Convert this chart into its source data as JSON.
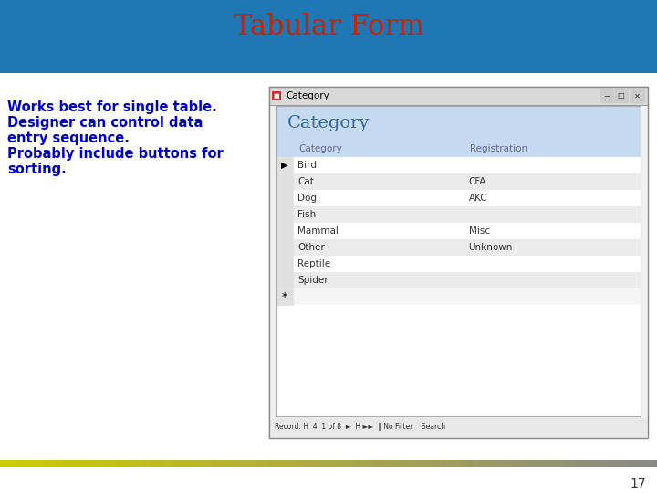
{
  "title": "Tabular Form",
  "title_color": "#cc2200",
  "title_fontsize": 22,
  "bg_top_color": "#ffffcc",
  "bg_top_yellow": "#ffff00",
  "text_lines": [
    "Works best for single table.",
    "Designer can control data",
    "entry sequence.",
    "Probably include buttons for",
    "sorting."
  ],
  "text_color": "#0000cc",
  "text_fontsize": 10.5,
  "page_number": "17",
  "bottom_bar_left": "#cccc00",
  "bottom_bar_right": "#888888",
  "window_title": "Category",
  "form_header": "Category",
  "col_headers": [
    "Category",
    "Registration"
  ],
  "rows": [
    [
      "Bird",
      ""
    ],
    [
      "Cat",
      "CFA"
    ],
    [
      "Dog",
      "AKC"
    ],
    [
      "Fish",
      ""
    ],
    [
      "Mammal",
      "Misc"
    ],
    [
      "Other",
      "Unknown"
    ],
    [
      "Reptile",
      ""
    ],
    [
      "Spider",
      ""
    ]
  ],
  "row_colors": [
    "#ffffff",
    "#ebebeb",
    "#ffffff",
    "#ebebeb",
    "#ffffff",
    "#ebebeb",
    "#ffffff",
    "#ebebeb"
  ],
  "header_bg": "#c5d9f1",
  "col_header_bg": "#c5d9f1",
  "window_bg": "#f0f0f0",
  "status_bar": "Record: H  4  1 of 8  ►  H ►►  ‖ No Filter    Search"
}
